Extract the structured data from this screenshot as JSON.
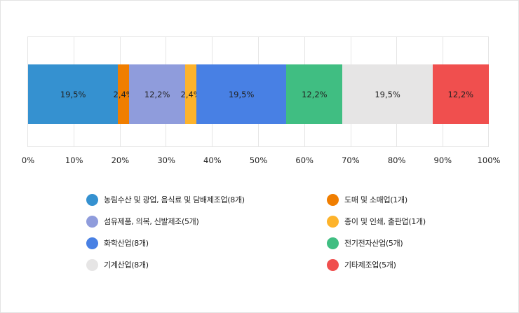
{
  "chart_data": {
    "type": "bar",
    "orientation": "horizontal-stacked-100",
    "title": "",
    "xlabel": "",
    "ylabel": "",
    "xlim": [
      0,
      100
    ],
    "grid": true,
    "legend_position": "bottom",
    "x_ticks": [
      "0%",
      "10%",
      "20%",
      "30%",
      "40%",
      "50%",
      "60%",
      "70%",
      "80%",
      "90%",
      "100%"
    ],
    "series": [
      {
        "name": "농림수산 및 광업, 음식료 및 담배제조업(8개)",
        "value": 19.5,
        "label": "19,5%",
        "color": "#3591d0"
      },
      {
        "name": "도매 및 소매업(1개)",
        "value": 2.4,
        "label": "2,4%",
        "color": "#f07e00"
      },
      {
        "name": "섬유제품, 의복, 신발제조(5개)",
        "value": 12.2,
        "label": "12,2%",
        "color": "#8f9cdc"
      },
      {
        "name": "종이 및 인쇄, 출판업(1개)",
        "value": 2.4,
        "label": "2,4%",
        "color": "#fdb32b"
      },
      {
        "name": "화학산업(8개)",
        "value": 19.5,
        "label": "19,5%",
        "color": "#4880e4"
      },
      {
        "name": "전기전자산업(5개)",
        "value": 12.2,
        "label": "12,2%",
        "color": "#40be82"
      },
      {
        "name": "기계산업(8개)",
        "value": 19.5,
        "label": "19,5%",
        "color": "#e6e5e5"
      },
      {
        "name": "기타제조업(5개)",
        "value": 12.2,
        "label": "12,2%",
        "color": "#f04f4e"
      }
    ]
  },
  "legend": {
    "left": [
      {
        "label": "농림수산 및 광업, 음식료 및 담배제조업(8개)",
        "color": "#3591d0"
      },
      {
        "label": "섬유제품, 의복, 신발제조(5개)",
        "color": "#8f9cdc"
      },
      {
        "label": "화학산업(8개)",
        "color": "#4880e4"
      },
      {
        "label": "기계산업(8개)",
        "color": "#e6e5e5"
      }
    ],
    "right": [
      {
        "label": "도매 및 소매업(1개)",
        "color": "#f07e00"
      },
      {
        "label": "종이 및 인쇄, 출판업(1개)",
        "color": "#fdb32b"
      },
      {
        "label": "전기전자산업(5개)",
        "color": "#40be82"
      },
      {
        "label": "기타제조업(5개)",
        "color": "#f04f4e"
      }
    ]
  }
}
